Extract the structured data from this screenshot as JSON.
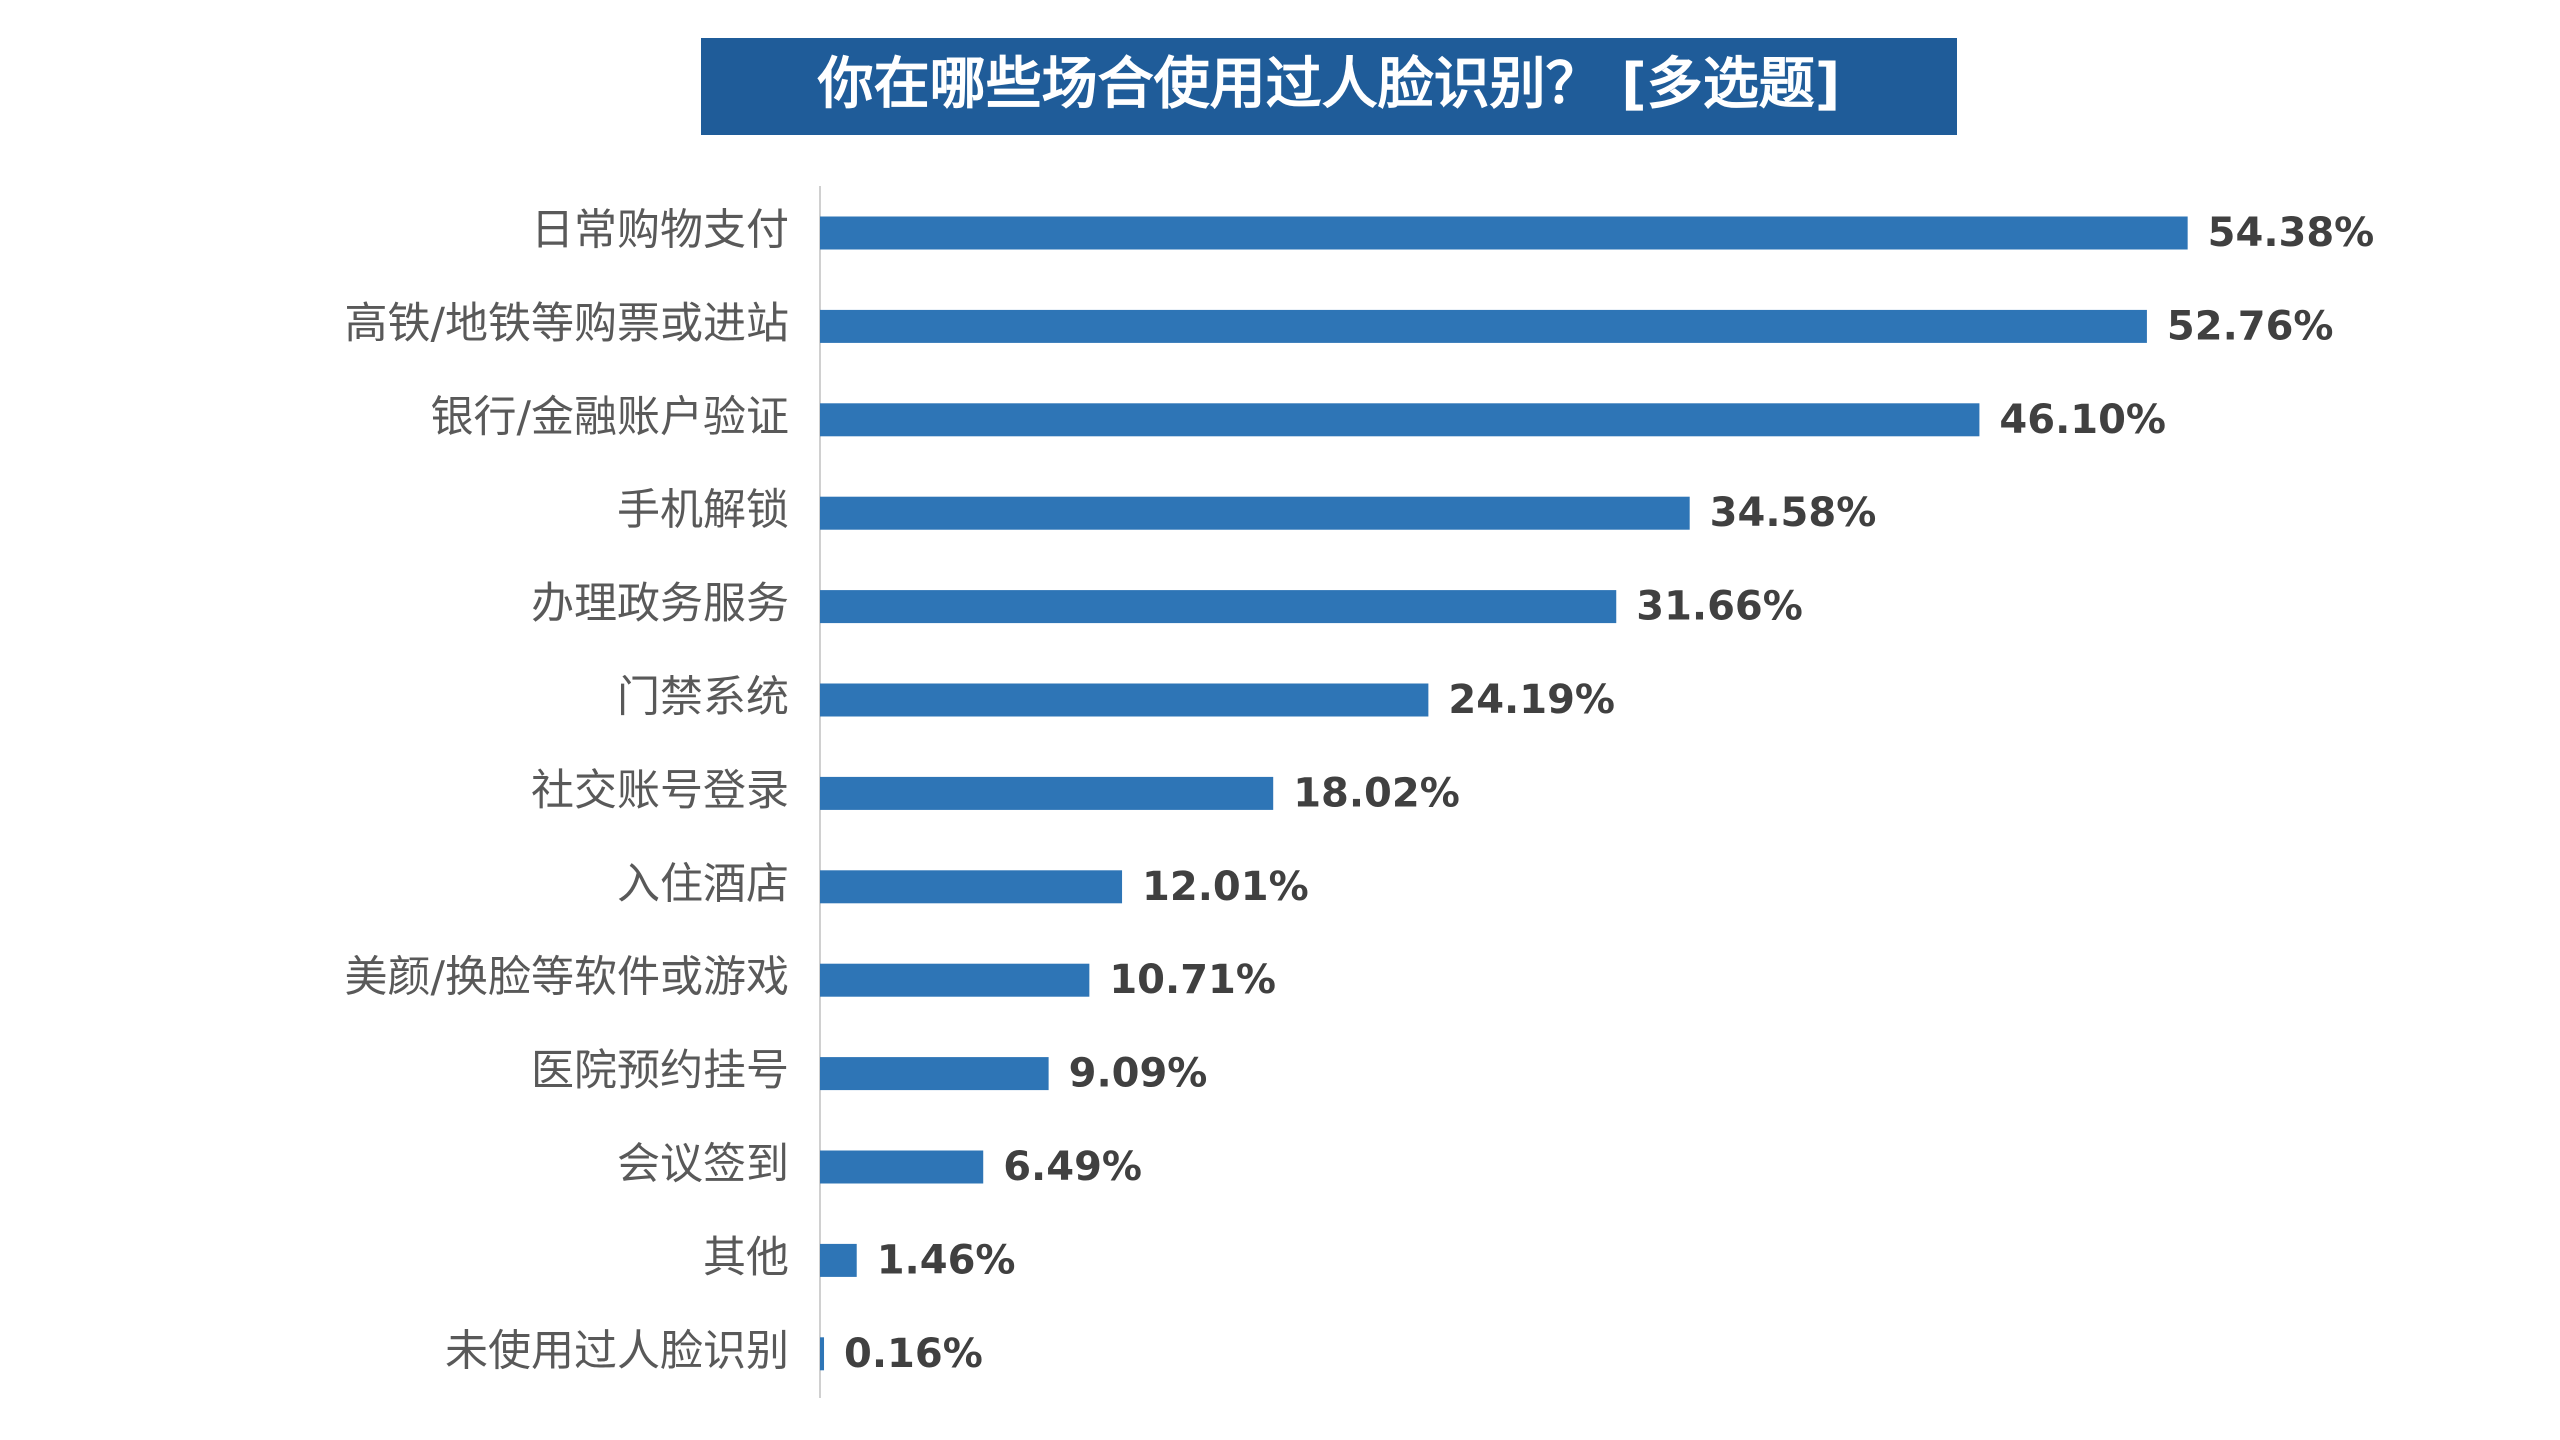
{
  "chart_data": {
    "type": "barh",
    "title": "你在哪些场合使用过人脸识别？ [多选题]",
    "categories": [
      "日常购物支付",
      "高铁/地铁等购票或进站",
      "银行/金融账户验证",
      "手机解锁",
      "办理政务服务",
      "门禁系统",
      "社交账号登录",
      "入住酒店",
      "美颜/换脸等软件或游戏",
      "医院预约挂号",
      "会议签到",
      "其他",
      "未使用过人脸识别"
    ],
    "values": [
      54.38,
      52.76,
      46.1,
      34.58,
      31.66,
      24.19,
      18.02,
      12.01,
      10.71,
      9.09,
      6.49,
      1.46,
      0.16
    ],
    "value_labels": [
      "54.38%",
      "52.76%",
      "46.10%",
      "34.58%",
      "31.66%",
      "24.19%",
      "18.02%",
      "12.01%",
      "10.71%",
      "9.09%",
      "6.49%",
      "1.46%",
      "0.16%"
    ],
    "color": "#2e75b6",
    "xlim": [
      0,
      60
    ]
  }
}
